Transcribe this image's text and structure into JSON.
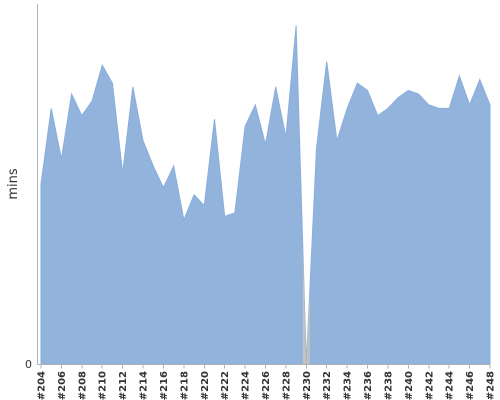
{
  "chart_data": {
    "type": "area",
    "title": "",
    "xlabel": "",
    "ylabel": "mins",
    "ylim": [
      0,
      100
    ],
    "y_ticks": [
      {
        "value": 0,
        "label": "0"
      }
    ],
    "grid": false,
    "legend": "none",
    "colors": {
      "area": "#92b3dc",
      "area_outline": "#8aaedb",
      "missing": "#c2c2c2",
      "axis": "#aeb3ba"
    },
    "series": [
      {
        "values": [
          50,
          71,
          57,
          75,
          69,
          73,
          83,
          78,
          53,
          77,
          62,
          55,
          49,
          55,
          40,
          47,
          44,
          68,
          41,
          42,
          66,
          72,
          61,
          77,
          63,
          94,
          0,
          60,
          84,
          62,
          71,
          78,
          76,
          69,
          71,
          74,
          76,
          75,
          72,
          71,
          71,
          80,
          72,
          79,
          72
        ]
      }
    ],
    "x": [
      "#204",
      "#205",
      "#206",
      "#207",
      "#208",
      "#209",
      "#210",
      "#211",
      "#212",
      "#213",
      "#214",
      "#215",
      "#216",
      "#217",
      "#218",
      "#219",
      "#220",
      "#221",
      "#222",
      "#223",
      "#224",
      "#225",
      "#226",
      "#227",
      "#228",
      "#229",
      "#230",
      "#231",
      "#232",
      "#233",
      "#234",
      "#235",
      "#236",
      "#237",
      "#238",
      "#239",
      "#240",
      "#241",
      "#242",
      "#243",
      "#244",
      "#245",
      "#246",
      "#247",
      "#248"
    ],
    "tick_labels": [
      "#204",
      "#206",
      "#208",
      "#210",
      "#212",
      "#214",
      "#216",
      "#218",
      "#220",
      "#222",
      "#224",
      "#226",
      "#228",
      "#230",
      "#232",
      "#234",
      "#236",
      "#238",
      "#240",
      "#242",
      "#244",
      "#246",
      "#248"
    ],
    "missing_points": [
      "#230"
    ]
  }
}
